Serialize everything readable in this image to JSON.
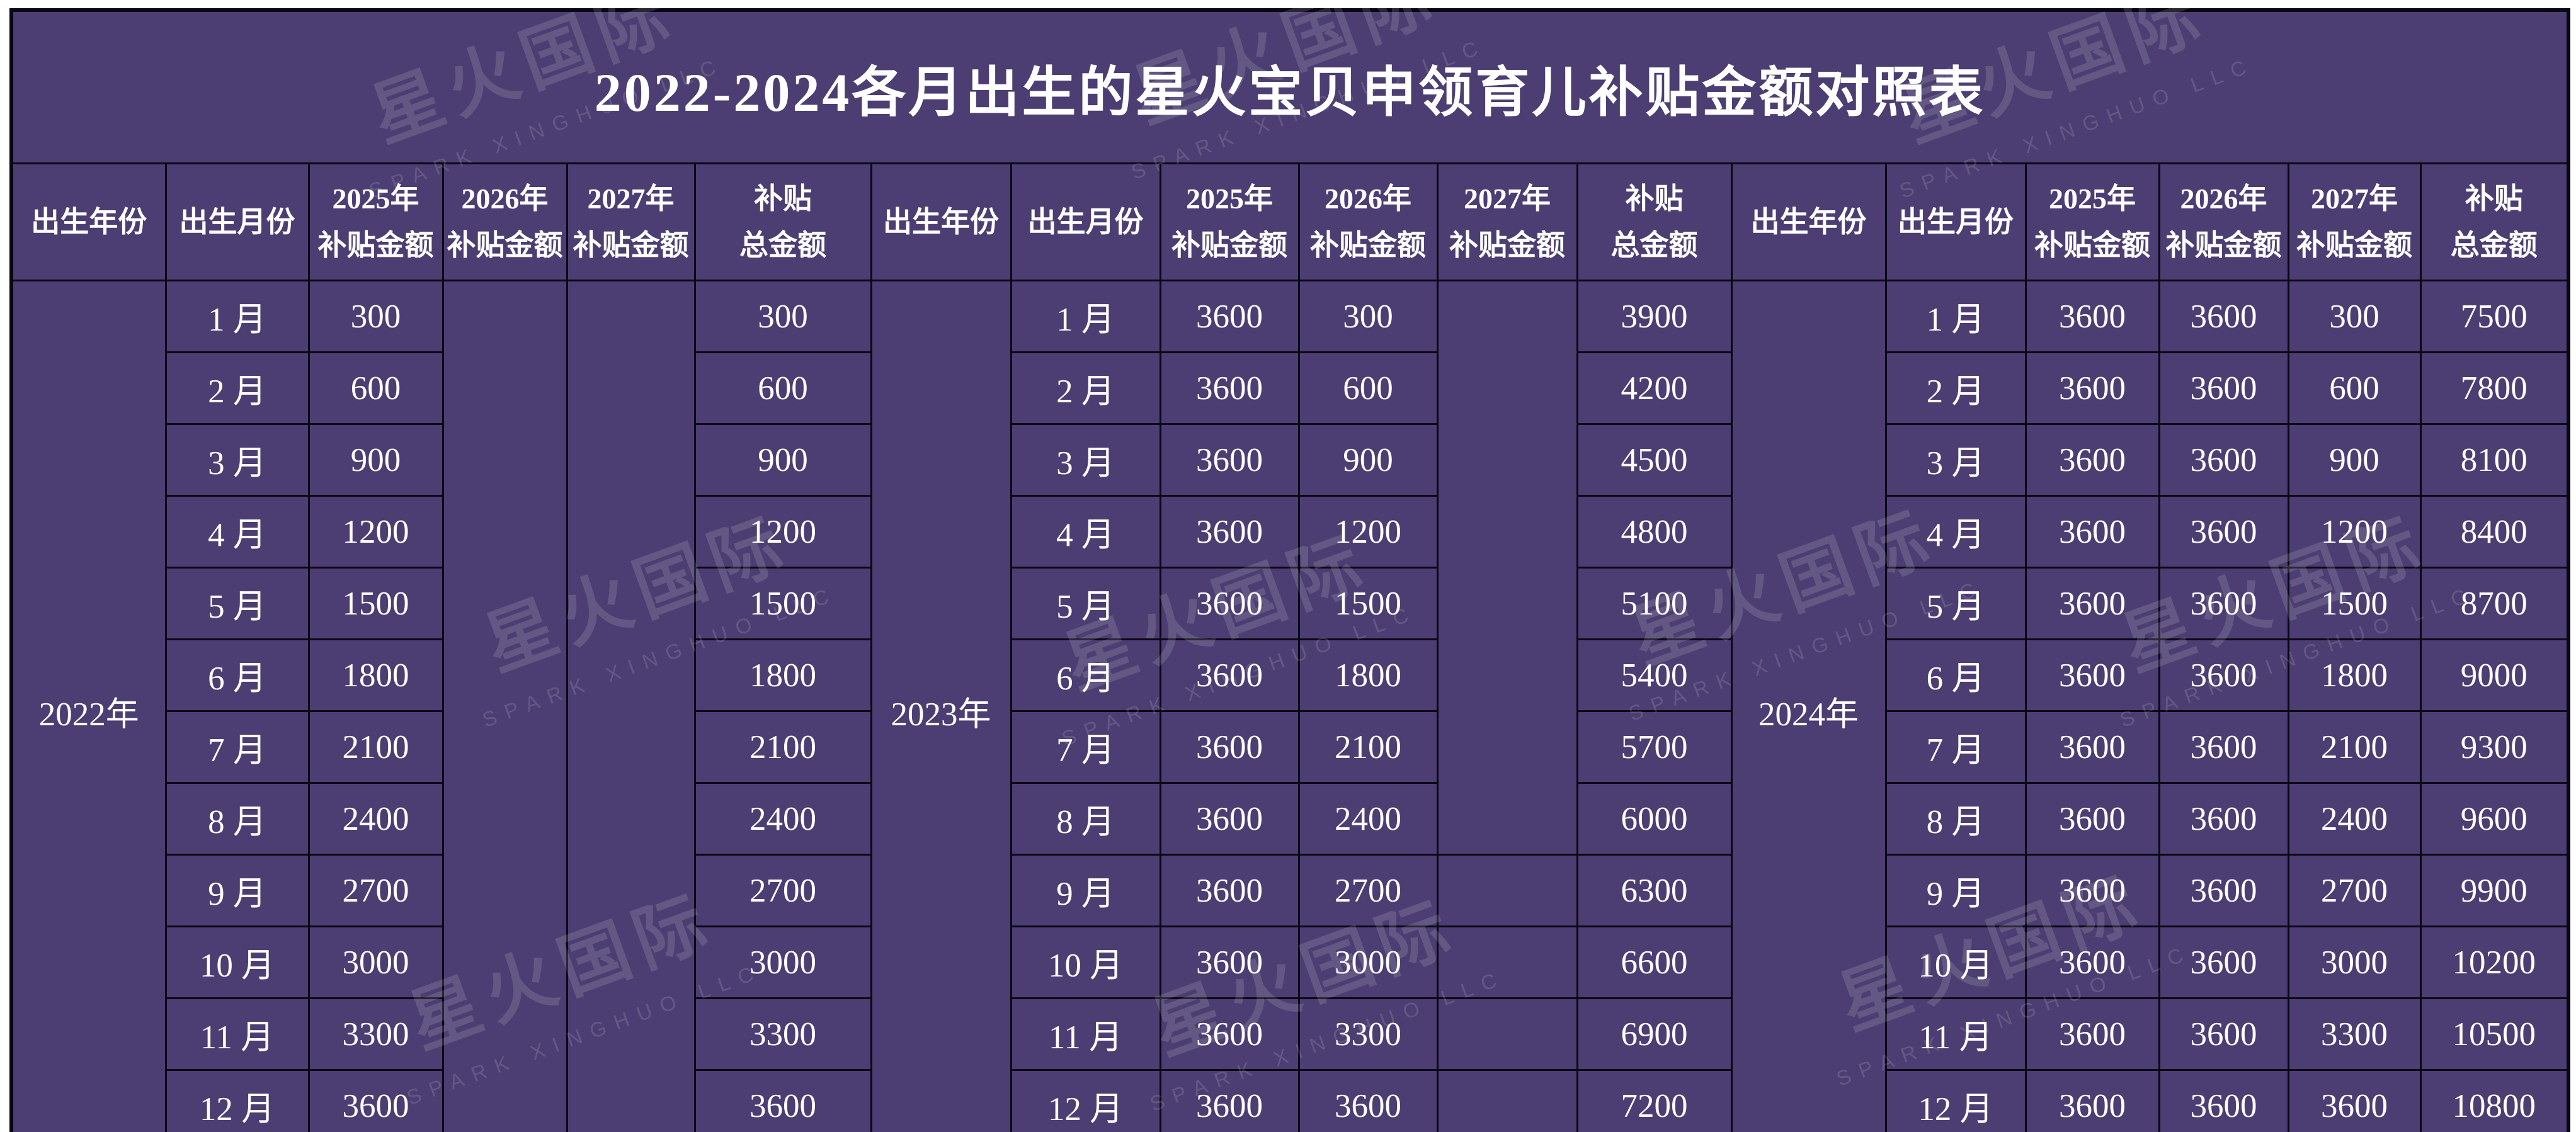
{
  "title": "2022-2024各月出生的星火宝贝申领育儿补贴金额对照表",
  "watermark": {
    "text": "星火国际",
    "subtext": "SPARK XINGHUO LLC"
  },
  "colors": {
    "table_purple": "#4C3E72",
    "grid_line": "#0A0714",
    "text": "#FFFFFF",
    "page_margin": "#FFFFFF"
  },
  "headers": {
    "year": "出生年份",
    "month": "出生月份",
    "y2025": "2025年\n补贴金额",
    "y2026": "2026年\n补贴金额",
    "y2027": "2027年\n补贴金额",
    "total": "补贴\n总金额"
  },
  "sections": [
    {
      "year": "2022年",
      "months": [
        "1 月",
        "2 月",
        "3 月",
        "4 月",
        "5 月",
        "6 月",
        "7 月",
        "8 月",
        "9 月",
        "10 月",
        "11 月",
        "12 月"
      ],
      "y2025": [
        "300",
        "600",
        "900",
        "1200",
        "1500",
        "1800",
        "2100",
        "2400",
        "2700",
        "3000",
        "3300",
        "3600"
      ],
      "totals": [
        "300",
        "600",
        "900",
        "1200",
        "1500",
        "1800",
        "2100",
        "2400",
        "2700",
        "3000",
        "3300",
        "3600"
      ]
    },
    {
      "year": "2023年",
      "months": [
        "1 月",
        "2 月",
        "3 月",
        "4 月",
        "5 月",
        "6 月",
        "7 月",
        "8 月",
        "9 月",
        "10 月",
        "11 月",
        "12 月"
      ],
      "y2025": [
        "3600",
        "3600",
        "3600",
        "3600",
        "3600",
        "3600",
        "3600",
        "3600",
        "3600",
        "3600",
        "3600",
        "3600"
      ],
      "y2026": [
        "300",
        "600",
        "900",
        "1200",
        "1500",
        "1800",
        "2100",
        "2400",
        "2700",
        "3000",
        "3300",
        "3600"
      ],
      "totals": [
        "3900",
        "4200",
        "4500",
        "4800",
        "5100",
        "5400",
        "5700",
        "6000",
        "6300",
        "6600",
        "6900",
        "7200"
      ]
    },
    {
      "year": "2024年",
      "months": [
        "1 月",
        "2 月",
        "3 月",
        "4 月",
        "5 月",
        "6 月",
        "7 月",
        "8 月",
        "9 月",
        "10 月",
        "11 月",
        "12 月"
      ],
      "y2025": [
        "3600",
        "3600",
        "3600",
        "3600",
        "3600",
        "3600",
        "3600",
        "3600",
        "3600",
        "3600",
        "3600",
        "3600"
      ],
      "y2026": [
        "3600",
        "3600",
        "3600",
        "3600",
        "3600",
        "3600",
        "3600",
        "3600",
        "3600",
        "3600",
        "3600",
        "3600"
      ],
      "y2027": [
        "300",
        "600",
        "900",
        "1200",
        "1500",
        "1800",
        "2100",
        "2400",
        "2700",
        "3000",
        "3300",
        "3600"
      ],
      "totals": [
        "7500",
        "7800",
        "8100",
        "8400",
        "8700",
        "9000",
        "9300",
        "9600",
        "9900",
        "10200",
        "10500",
        "10800"
      ]
    }
  ]
}
